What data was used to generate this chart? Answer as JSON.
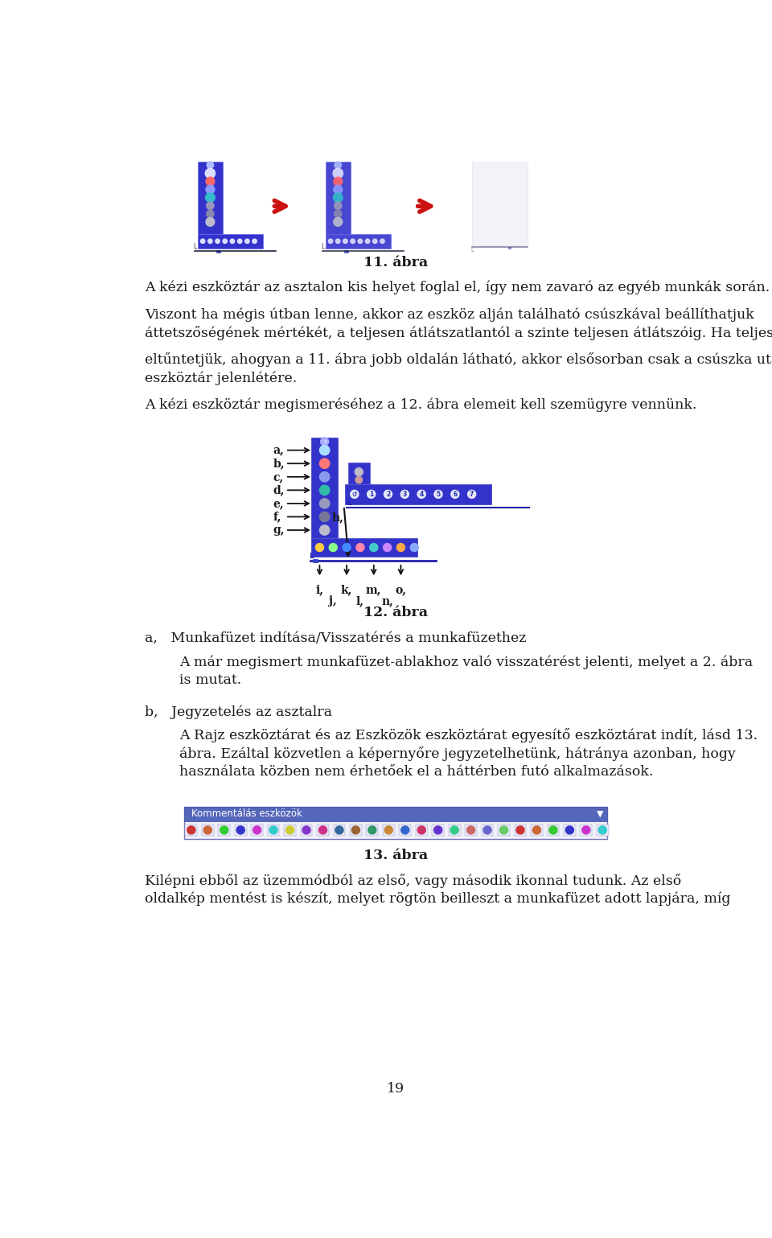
{
  "page_width": 9.6,
  "page_height": 15.39,
  "bg_color": "#ffffff",
  "text_color": "#1a1a1a",
  "body_fontsize": 12.5,
  "toolbar_blue": "#3333cc",
  "toolbar_blue2": "#2222bb",
  "toolbar_light": "#9999ee",
  "arrow_red": "#cc1111",
  "fig11_caption": "11. ábra",
  "fig12_caption": "12. ábra",
  "fig13_caption": "13. ábra",
  "page_number": "19",
  "lm": 0.78,
  "rm": 8.82,
  "text_lines": [
    "A kézi eszköztár az asztalon kis helyet foglal el, így nem zavaró az egyéb munkák során.",
    "Viszont ha mégis útban lenne, akkor az eszköz alján található csúszkával beállíthatjuk",
    "áttetszőségének mértékét, a teljesen átlátszatlanttól a szinte teljesen átlátszóig. Ha teljesen",
    "eltűntetjük, ahogyan a 11. ábra jobb oldalán látható, akkor elsősorban csak a csúszka utal az",
    "eszköztár jelenlétére.",
    "A kézi eszköztár megismeréséhez a 12. ábra elemeit kell szemügyre vennünk."
  ],
  "sec_a_head": "a,   Munkafüzet indítása/Visszatérés a munkafüzethe z",
  "sec_a_head_real": "a,   Munkafüzet indítása/Visszatérés a munkafüzethe​z",
  "sec_a_line1": "A már megismert munkafüzet-ablakhoz való visszatérést jelenti, melyet a 2. ábra",
  "sec_a_line2": "is mutat.",
  "sec_b_head": "b,   Jegyzetelés az asztalra",
  "sec_b_line1": "A Rajz eszköztárat és az Eszközök eszköztárat egyesítő eszköztárat indít, lásd 13.",
  "sec_b_line2": "ábra. Ezáltal közvetlen a képernyőre jegyzetelhetünk, hátránya azonban, hogy",
  "sec_b_line3": "használata közben nem érhetőek el a háttérben futó alkalmazások.",
  "last_line1": "Kilépni ebből az üzemmódból az első, vagy második ikonnal tudunk. Az első",
  "last_line2": "oldalkép mentést is készít, melyet rögtön beilleszt a munkafüzet adott lapjára, míg"
}
